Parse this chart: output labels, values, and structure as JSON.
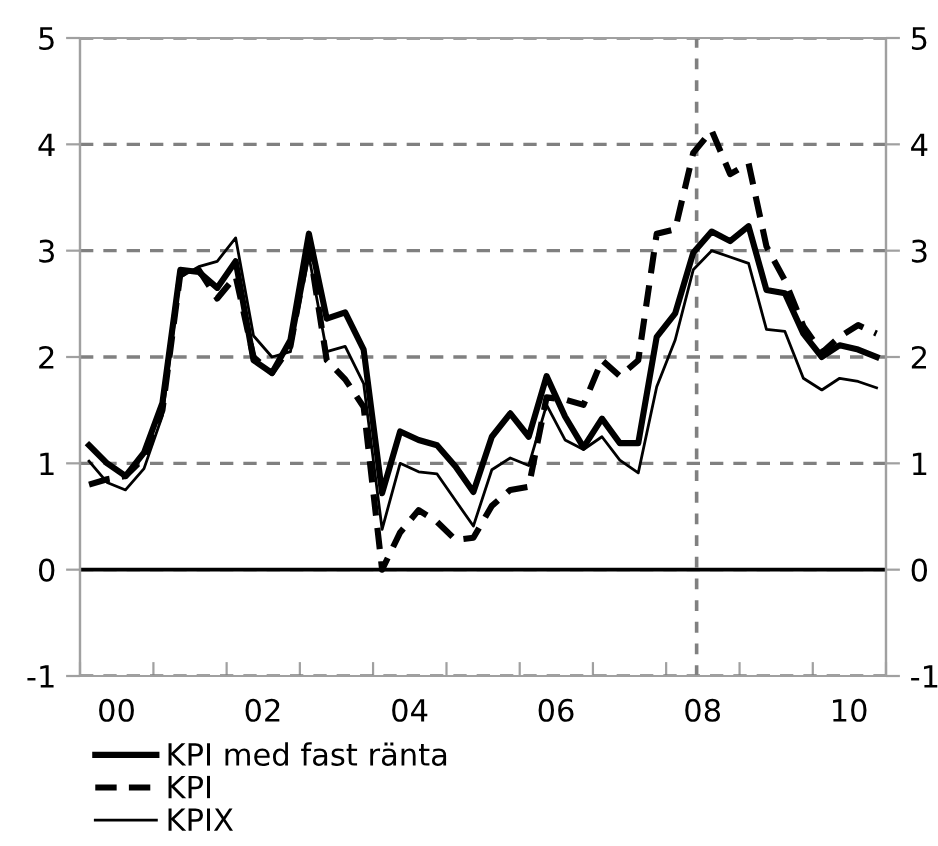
{
  "chart_data": {
    "type": "line",
    "x": [
      "2000-02-15",
      "2000-05-15",
      "2000-08-15",
      "2000-11-15",
      "2001-02-15",
      "2001-05-15",
      "2001-08-15",
      "2001-11-15",
      "2002-02-15",
      "2002-05-15",
      "2002-08-15",
      "2002-11-15",
      "2003-02-15",
      "2003-05-15",
      "2003-08-15",
      "2003-11-15",
      "2004-02-15",
      "2004-05-15",
      "2004-08-15",
      "2004-11-15",
      "2005-02-15",
      "2005-05-15",
      "2005-08-15",
      "2005-11-15",
      "2006-02-15",
      "2006-05-15",
      "2006-08-15",
      "2006-11-15",
      "2007-02-15",
      "2007-05-15",
      "2007-08-15",
      "2007-11-15",
      "2008-02-15",
      "2008-05-15",
      "2008-08-15",
      "2008-11-15",
      "2009-02-15",
      "2009-05-15",
      "2009-08-15",
      "2009-11-15",
      "2010-02-15",
      "2010-05-15",
      "2010-08-15",
      "2010-11-15"
    ],
    "series": [
      {
        "name": "KPI med fast ränta",
        "color": "#000000",
        "line_style": "solid",
        "values": [
          1.17,
          1.0,
          0.88,
          1.1,
          1.57,
          2.82,
          2.8,
          2.65,
          2.9,
          1.97,
          1.85,
          2.16,
          3.16,
          2.36,
          2.42,
          2.07,
          0.72,
          1.3,
          1.22,
          1.17,
          0.97,
          0.73,
          1.25,
          1.47,
          1.25,
          1.82,
          1.44,
          1.15,
          1.42,
          1.19,
          1.19,
          2.19,
          2.41,
          2.98,
          3.18,
          3.09,
          3.23,
          2.63,
          2.6,
          2.22,
          2.0,
          2.11,
          2.07,
          2.0
        ]
      },
      {
        "name": "KPI",
        "color": "#000000",
        "line_style": "dashed",
        "values": [
          0.8,
          0.85,
          0.88,
          1.05,
          1.5,
          2.78,
          2.82,
          2.55,
          2.76,
          2.0,
          1.85,
          2.1,
          3.05,
          1.97,
          1.79,
          1.53,
          0.0,
          0.35,
          0.56,
          0.45,
          0.28,
          0.3,
          0.6,
          0.75,
          0.78,
          1.62,
          1.6,
          1.55,
          1.97,
          1.82,
          1.97,
          3.16,
          3.2,
          3.92,
          4.13,
          3.72,
          3.82,
          3.04,
          2.72,
          2.29,
          2.04,
          2.19,
          2.3,
          2.22
        ]
      },
      {
        "name": "KPIX",
        "color": "#000000",
        "line_style": "solid",
        "values": [
          1.02,
          0.82,
          0.75,
          0.95,
          1.45,
          2.75,
          2.85,
          2.9,
          3.12,
          2.2,
          2.0,
          2.05,
          2.95,
          2.05,
          2.1,
          1.75,
          0.38,
          1.0,
          0.92,
          0.9,
          0.65,
          0.41,
          0.94,
          1.05,
          0.98,
          1.55,
          1.22,
          1.13,
          1.25,
          1.03,
          0.91,
          1.72,
          2.16,
          2.82,
          3.0,
          2.94,
          2.88,
          2.26,
          2.24,
          1.8,
          1.69,
          1.8,
          1.77,
          1.71
        ]
      }
    ],
    "xlim": [
      "2000-01-01",
      "2011-01-01"
    ],
    "xticks": [
      {
        "value": "2000-01-01",
        "label": null
      },
      {
        "value": "2000-07-01",
        "label": "00"
      },
      {
        "value": "2001-01-01",
        "label": null
      },
      {
        "value": "2002-01-01",
        "label": null
      },
      {
        "value": "2002-07-01",
        "label": "02"
      },
      {
        "value": "2003-01-01",
        "label": null
      },
      {
        "value": "2004-01-01",
        "label": null
      },
      {
        "value": "2004-07-01",
        "label": "04"
      },
      {
        "value": "2005-01-01",
        "label": null
      },
      {
        "value": "2006-01-01",
        "label": null
      },
      {
        "value": "2006-07-01",
        "label": "06"
      },
      {
        "value": "2007-01-01",
        "label": null
      },
      {
        "value": "2008-01-01",
        "label": null
      },
      {
        "value": "2008-07-01",
        "label": "08"
      },
      {
        "value": "2009-01-01",
        "label": null
      },
      {
        "value": "2010-01-01",
        "label": null
      },
      {
        "value": "2010-07-01",
        "label": "10"
      },
      {
        "value": "2011-01-01",
        "label": null
      }
    ],
    "ylim": [
      -1,
      5
    ],
    "yticks": [
      -1,
      0,
      1,
      2,
      3,
      4,
      5
    ],
    "y2lim": [
      -1,
      5
    ],
    "y2ticks": [
      -1,
      0,
      1,
      2,
      3,
      4,
      5
    ],
    "ref_lines": [
      {
        "axis": "y",
        "value": 0,
        "color": "#000000",
        "line_style": "solid"
      },
      {
        "axis": "x",
        "value": "2008-06-01",
        "color": "#808080",
        "line_style": "dashed"
      }
    ],
    "grid": "y",
    "legend": "bottom left"
  }
}
